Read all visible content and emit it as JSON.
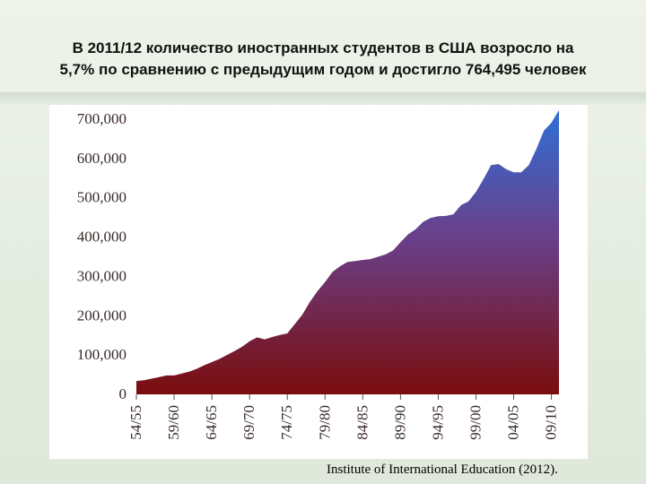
{
  "title": {
    "line1": "В 2011/12 количество иностранных студентов в США возросло на",
    "line2": "5,7% по сравнению с предыдущим годом и достигло 764,495 человек"
  },
  "source": "Institute of International Education (2012).",
  "colors": {
    "area_top": "#2f6fd6",
    "area_mid": "#6a3f8a",
    "area_bottom": "#7a0d0d"
  },
  "chart_data": {
    "type": "area",
    "title": "",
    "xlabel": "",
    "ylabel": "",
    "ylim": [
      0,
      700000
    ],
    "grid": false,
    "legend": "none",
    "y_ticks": [
      {
        "value": 0,
        "label": "0"
      },
      {
        "value": 100000,
        "label": "100,000"
      },
      {
        "value": 200000,
        "label": "200,000"
      },
      {
        "value": 300000,
        "label": "300,000"
      },
      {
        "value": 400000,
        "label": "400,000"
      },
      {
        "value": 500000,
        "label": "500,000"
      },
      {
        "value": 600000,
        "label": "600,000"
      },
      {
        "value": 700000,
        "label": "700,000"
      }
    ],
    "x_ticks": [
      "54/55",
      "59/60",
      "64/65",
      "69/70",
      "74/75",
      "79/80",
      "84/85",
      "89/90",
      "94/95",
      "99/00",
      "04/05",
      "09/10"
    ],
    "x": [
      "54/55",
      "55/56",
      "56/57",
      "57/58",
      "58/59",
      "59/60",
      "60/61",
      "61/62",
      "62/63",
      "63/64",
      "64/65",
      "65/66",
      "66/67",
      "67/68",
      "68/69",
      "69/70",
      "70/71",
      "71/72",
      "72/73",
      "73/74",
      "74/75",
      "75/76",
      "76/77",
      "77/78",
      "78/79",
      "79/80",
      "80/81",
      "81/82",
      "82/83",
      "83/84",
      "84/85",
      "85/86",
      "86/87",
      "87/88",
      "88/89",
      "89/90",
      "90/91",
      "91/92",
      "92/93",
      "93/94",
      "94/95",
      "95/96",
      "96/97",
      "97/98",
      "98/99",
      "99/00",
      "00/01",
      "01/02",
      "02/03",
      "03/04",
      "04/05",
      "05/06",
      "06/07",
      "07/08",
      "08/09",
      "09/10",
      "10/11"
    ],
    "series": [
      {
        "values": [
          34000,
          36000,
          40000,
          44000,
          48000,
          48000,
          53000,
          58000,
          65000,
          74000,
          82000,
          90000,
          100000,
          110000,
          121000,
          135000,
          145000,
          140000,
          146000,
          151000,
          155000,
          179000,
          203000,
          235000,
          263000,
          286000,
          312000,
          326000,
          337000,
          339000,
          342000,
          344000,
          350000,
          356000,
          366000,
          387000,
          407000,
          420000,
          439000,
          449000,
          453000,
          454000,
          458000,
          481000,
          491000,
          515000,
          548000,
          583000,
          586000,
          573000,
          565000,
          565000,
          583000,
          624000,
          671000,
          691000,
          723000
        ]
      }
    ]
  }
}
